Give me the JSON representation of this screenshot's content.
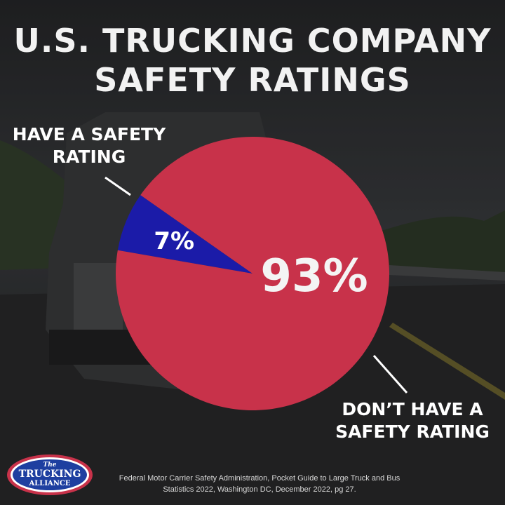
{
  "title": {
    "line1": "U.S. TRUCKING COMPANY",
    "line2": "SAFETY RATINGS"
  },
  "chart_data": {
    "type": "pie",
    "title": "U.S. TRUCKING COMPANY SAFETY RATINGS",
    "slices": [
      {
        "label": "HAVE A SAFETY RATING",
        "value": 7,
        "display": "7%",
        "color": "#1b1ba8"
      },
      {
        "label": "DON'T HAVE A SAFETY RATING",
        "value": 93,
        "display": "93%",
        "color": "#c8324a"
      }
    ]
  },
  "callouts": {
    "rated": {
      "line1": "HAVE A SAFETY",
      "line2": "RATING"
    },
    "unrated": {
      "line1": "DON’T HAVE A",
      "line2": "SAFETY RATING"
    }
  },
  "source": {
    "line1": "Federal Motor Carrier Safety Administration, Pocket Guide to Large Truck and Bus",
    "line2": "Statistics 2022, Washington DC, December 2022, pg 27."
  },
  "logo": {
    "top": "The",
    "middle": "TRUCKING",
    "bottom": "ALLIANCE",
    "ring_color": "#c8324a",
    "fill_color": "#1e3fa0"
  },
  "colors": {
    "background": "#2a2b2d",
    "text": "#ffffff"
  }
}
